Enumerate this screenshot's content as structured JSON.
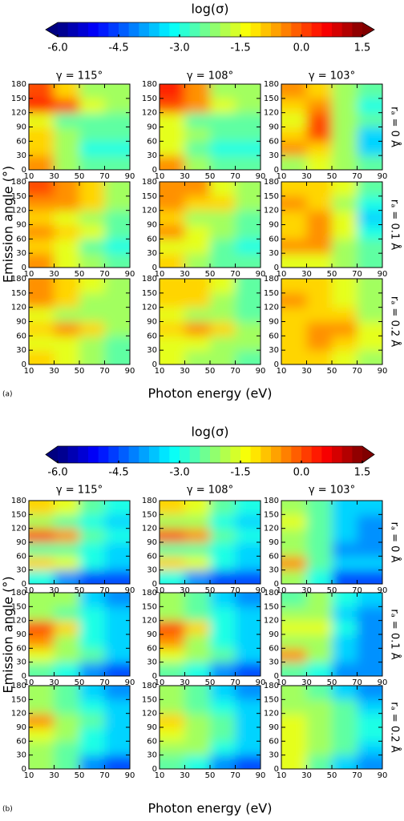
{
  "chart_data": [
    {
      "type": "heatmap",
      "panel_label": "(a)",
      "colorbar_title": "log(σ)",
      "colormap": "jet",
      "clim": [
        -6,
        1.5
      ],
      "cticks": [
        {
          "value": -6,
          "label": "-6.0"
        },
        {
          "value": -4.5,
          "label": "-4.5"
        },
        {
          "value": -3,
          "label": "-3.0"
        },
        -1.5,
        {
          "value": 0,
          "label": "0.0"
        },
        1.5
      ],
      "columns": [
        "γ = 115°",
        "γ = 108°",
        "γ = 103°"
      ],
      "rows": [
        "rₐ = 0 Å",
        "rₐ = 0.1 Å",
        "rₐ = 0.2 Å"
      ],
      "xlabel": "Photon energy (eV)",
      "ylabel": "Emission angle (°)",
      "xlim": [
        10,
        90
      ],
      "xticks": [
        10,
        30,
        50,
        70,
        90
      ],
      "ylim": [
        0,
        180
      ],
      "yticks": [
        0,
        30,
        60,
        90,
        120,
        150,
        180
      ],
      "grids": [
        [
          [
            [
              -0.5,
              -2,
              -2.5,
              -2.5
            ],
            [
              -1,
              -2,
              -3,
              -3
            ],
            [
              -1,
              -2,
              -2.5,
              -2.5
            ],
            [
              -1.5,
              -2.5,
              -2.5,
              -2.5
            ],
            [
              0.3,
              0,
              -1.5,
              -2
            ],
            [
              0,
              -1,
              -2,
              -2
            ]
          ],
          [
            [
              -0.5,
              -2,
              -2.5,
              -2.5
            ],
            [
              -1.5,
              -2.5,
              -3,
              -3
            ],
            [
              -1.5,
              -2,
              -2.5,
              -2.5
            ],
            [
              -1.5,
              -2.5,
              -2.5,
              -2.5
            ],
            [
              0,
              -0.5,
              -1.5,
              -2
            ],
            [
              0.3,
              -0.5,
              -2,
              -2
            ]
          ],
          [
            [
              -2,
              -1.5,
              -2,
              -2.5
            ],
            [
              -0.5,
              -1,
              -2,
              -3.5
            ],
            [
              -1,
              0,
              -2,
              -3.5
            ],
            [
              -1.5,
              0,
              -2,
              -2.5
            ],
            [
              -1,
              -0.5,
              -2,
              -3
            ],
            [
              -0.5,
              -1,
              -2,
              -2.5
            ]
          ]
        ],
        [
          [
            [
              -0.5,
              -1.5,
              -2,
              -2.5
            ],
            [
              -1,
              -1.5,
              -2.5,
              -3
            ],
            [
              -0.5,
              -1,
              -1.5,
              -2.5
            ],
            [
              -1,
              -1.5,
              -2,
              -2.5
            ],
            [
              -0.5,
              -0.5,
              -1,
              -2
            ],
            [
              0,
              -0.5,
              -1,
              -2
            ]
          ],
          [
            [
              -1,
              -2,
              -2.5,
              -2.5
            ],
            [
              -1.5,
              -1.5,
              -2.5,
              -3
            ],
            [
              -0.5,
              -1.5,
              -2,
              -2.5
            ],
            [
              -1,
              -2,
              -2,
              -2.5
            ],
            [
              -0.5,
              -1,
              -1,
              -2
            ],
            [
              -0.5,
              -0.5,
              -1.5,
              -2
            ]
          ],
          [
            [
              -1.5,
              -1.5,
              -2,
              -2.5
            ],
            [
              -0.5,
              -0.5,
              -2,
              -2.5
            ],
            [
              -1,
              -0.5,
              -1.5,
              -3
            ],
            [
              -1,
              -0.5,
              -1.5,
              -3.5
            ],
            [
              -0.5,
              -1,
              -2,
              -3
            ],
            [
              -1,
              -1,
              -1.5,
              -2.5
            ]
          ]
        ],
        [
          [
            [
              -1,
              -1.5,
              -2,
              -2.5
            ],
            [
              -1.5,
              -1.5,
              -2,
              -2.5
            ],
            [
              -1,
              -0.5,
              -1,
              -2
            ],
            [
              -1.5,
              -2,
              -2,
              -2
            ],
            [
              -0.5,
              -1,
              -2,
              -2
            ],
            [
              -0.5,
              -1,
              -1.5,
              -2
            ]
          ],
          [
            [
              -1.5,
              -2,
              -2,
              -2.5
            ],
            [
              -1.5,
              -1.5,
              -2,
              -2
            ],
            [
              -1,
              -0.5,
              -1,
              -2
            ],
            [
              -1.5,
              -2,
              -2,
              -2.5
            ],
            [
              -1,
              -1,
              -2,
              -2.5
            ],
            [
              -1,
              -1,
              -1.5,
              -2.5
            ]
          ],
          [
            [
              -1,
              -1,
              -1.5,
              -2
            ],
            [
              -1,
              -0.5,
              -1,
              -1.5
            ],
            [
              -1,
              -0.5,
              -0.5,
              -1.5
            ],
            [
              -1,
              -1,
              -1,
              -2
            ],
            [
              -0.5,
              -1,
              -1.5,
              -2
            ],
            [
              -1,
              -1,
              -1.5,
              -2
            ]
          ]
        ]
      ]
    },
    {
      "type": "heatmap",
      "panel_label": "(b)",
      "colorbar_title": "log(σ)",
      "colormap": "jet",
      "clim": [
        -6,
        1.5
      ],
      "cticks": [
        {
          "value": -6,
          "label": "-6.0"
        },
        {
          "value": -4.5,
          "label": "-4.5"
        },
        {
          "value": -3,
          "label": "-3.0"
        },
        -1.5,
        {
          "value": 0,
          "label": "0.0"
        },
        1.5
      ],
      "columns": [
        "γ = 115°",
        "γ = 108°",
        "γ = 103°"
      ],
      "rows": [
        "rₐ = 0 Å",
        "rₐ = 0.1 Å",
        "rₐ = 0.2 Å"
      ],
      "xlabel": "Photon energy (eV)",
      "ylabel": "Emission angle (°)",
      "xlim": [
        10,
        90
      ],
      "xticks": [
        10,
        30,
        50,
        70,
        90
      ],
      "ylim": [
        0,
        180
      ],
      "yticks": [
        0,
        30,
        60,
        90,
        120,
        150,
        180
      ],
      "grids": [
        [
          [
            [
              -3,
              -4,
              -4.5,
              -4.5
            ],
            [
              -1,
              -1.5,
              -3,
              -3.5
            ],
            [
              -2.5,
              -2.5,
              -3,
              -3.5
            ],
            [
              0,
              -0.5,
              -2.5,
              -3
            ],
            [
              -2,
              -2.5,
              -3,
              -3.5
            ],
            [
              -1,
              -1.5,
              -2.5,
              -3
            ]
          ],
          [
            [
              -3,
              -4,
              -4.5,
              -4.5
            ],
            [
              -1,
              -1.5,
              -3,
              -3.5
            ],
            [
              -2.5,
              -2.5,
              -3,
              -3.5
            ],
            [
              0,
              -0.5,
              -2.5,
              -3
            ],
            [
              -2,
              -2,
              -3,
              -3.5
            ],
            [
              -1,
              -1.5,
              -2.5,
              -3
            ]
          ],
          [
            [
              -2,
              -3,
              -4.5,
              -4.5
            ],
            [
              -0.5,
              -2.5,
              -3.5,
              -3.5
            ],
            [
              -2,
              -2.5,
              -4,
              -4
            ],
            [
              -2,
              -2.5,
              -3.5,
              -4
            ],
            [
              -1.5,
              -2.5,
              -3.5,
              -4
            ],
            [
              -2,
              -2.5,
              -3.5,
              -3.5
            ]
          ]
        ],
        [
          [
            [
              -2.5,
              -3,
              -4,
              -4.5
            ],
            [
              -1.5,
              -2,
              -2.5,
              -3.5
            ],
            [
              -0.5,
              -2,
              -3,
              -3.5
            ],
            [
              0,
              -1,
              -3,
              -3.5
            ],
            [
              -2,
              -2.5,
              -3,
              -3.5
            ],
            [
              -2,
              -2,
              -3.5,
              -4
            ]
          ],
          [
            [
              -2.5,
              -3,
              -4,
              -4.5
            ],
            [
              -1.5,
              -2,
              -2.5,
              -3.5
            ],
            [
              -0.5,
              -2,
              -3,
              -3.5
            ],
            [
              0,
              -1,
              -3,
              -3.5
            ],
            [
              -2,
              -2.5,
              -3,
              -3.5
            ],
            [
              -2,
              -2.5,
              -3.5,
              -4
            ]
          ],
          [
            [
              -2.5,
              -3,
              -4,
              -4
            ],
            [
              -0.5,
              -2,
              -3.5,
              -4
            ],
            [
              -2,
              -2,
              -3.5,
              -4
            ],
            [
              -1.5,
              -1.5,
              -3,
              -4
            ],
            [
              -2,
              -2,
              -3.5,
              -4
            ],
            [
              -2.5,
              -2,
              -3,
              -3.5
            ]
          ]
        ],
        [
          [
            [
              -2,
              -2.5,
              -4,
              -4.5
            ],
            [
              -2,
              -2.5,
              -3,
              -3.5
            ],
            [
              -1.5,
              -2,
              -3,
              -3.5
            ],
            [
              -0.5,
              -2,
              -2.5,
              -3.5
            ],
            [
              -2,
              -2.5,
              -3,
              -3.5
            ],
            [
              -2,
              -2.5,
              -3.5,
              -4
            ]
          ],
          [
            [
              -2.5,
              -3,
              -4,
              -4.5
            ],
            [
              -2,
              -2,
              -3,
              -3.5
            ],
            [
              -1.5,
              -2,
              -2.5,
              -3.5
            ],
            [
              -1,
              -2,
              -2.5,
              -3.5
            ],
            [
              -2,
              -2.5,
              -3,
              -3.5
            ],
            [
              -2,
              -2.5,
              -3.5,
              -4
            ]
          ],
          [
            [
              -1.5,
              -2.5,
              -3.5,
              -4
            ],
            [
              -1.5,
              -2,
              -2.5,
              -3.5
            ],
            [
              -1.5,
              -2,
              -2.5,
              -3
            ],
            [
              -1.5,
              -2,
              -2.5,
              -3
            ],
            [
              -2,
              -2,
              -2.5,
              -3.5
            ],
            [
              -2,
              -2.5,
              -3.5,
              -4
            ]
          ]
        ]
      ]
    }
  ]
}
